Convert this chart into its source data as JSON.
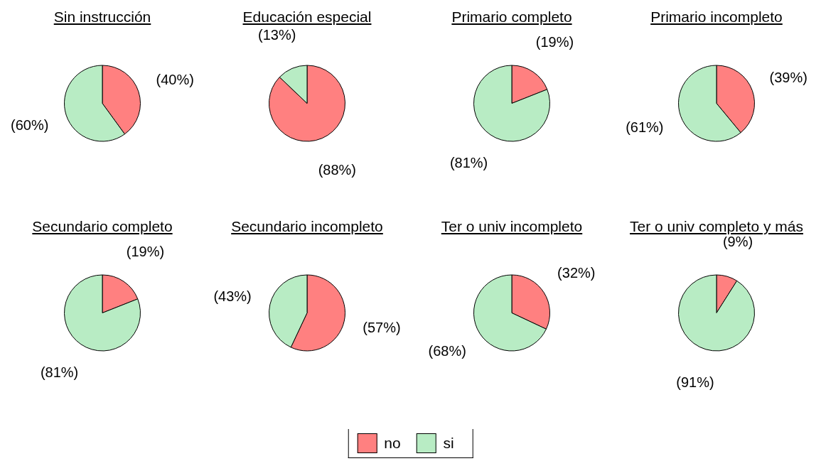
{
  "chart_data": [
    {
      "type": "pie",
      "title": "Sin instrucción",
      "categories": [
        "no",
        "si"
      ],
      "values": [
        40,
        60
      ],
      "colors": [
        "#ff8080",
        "#b8ecc4"
      ],
      "value_labels": [
        "(40%)",
        "(60%)"
      ],
      "legend": "bottom"
    },
    {
      "type": "pie",
      "title": "Educación especial",
      "categories": [
        null,
        null
      ],
      "values": [
        88,
        13
      ],
      "colors": [
        "#ff8080",
        "#b8ecc4"
      ],
      "value_labels": [
        "(88%)",
        "(13%)"
      ]
    },
    {
      "type": "pie",
      "title": "Primario completo",
      "categories": [
        null,
        null
      ],
      "values": [
        19,
        81
      ],
      "colors": [
        "#ff8080",
        "#b8ecc4"
      ],
      "value_labels": [
        "(19%)",
        "(81%)"
      ]
    },
    {
      "type": "pie",
      "title": "Primario incompleto",
      "categories": [
        null,
        null
      ],
      "values": [
        39,
        61
      ],
      "colors": [
        "#ff8080",
        "#b8ecc4"
      ],
      "value_labels": [
        "(39%)",
        "(61%)"
      ]
    },
    {
      "type": "pie",
      "title": "Secundario completo",
      "categories": [
        null,
        null
      ],
      "values": [
        19,
        81
      ],
      "colors": [
        "#ff8080",
        "#b8ecc4"
      ],
      "value_labels": [
        "(19%)",
        "(81%)"
      ]
    },
    {
      "type": "pie",
      "title": "Secundario incompleto",
      "categories": [
        null,
        null
      ],
      "values": [
        57,
        43
      ],
      "colors": [
        "#ff8080",
        "#b8ecc4"
      ],
      "value_labels": [
        "(57%)",
        "(43%)"
      ]
    },
    {
      "type": "pie",
      "title": "Ter o univ incompleto",
      "categories": [
        null,
        null
      ],
      "values": [
        32,
        68
      ],
      "colors": [
        "#ff8080",
        "#b8ecc4"
      ],
      "value_labels": [
        "(32%)",
        "(68%)"
      ]
    },
    {
      "type": "pie",
      "title": "Ter o univ completo y más",
      "categories": [
        null,
        null
      ],
      "values": [
        9,
        91
      ],
      "colors": [
        "#ff8080",
        "#b8ecc4"
      ],
      "value_labels": [
        "(9%)",
        "(91%)"
      ]
    }
  ]
}
